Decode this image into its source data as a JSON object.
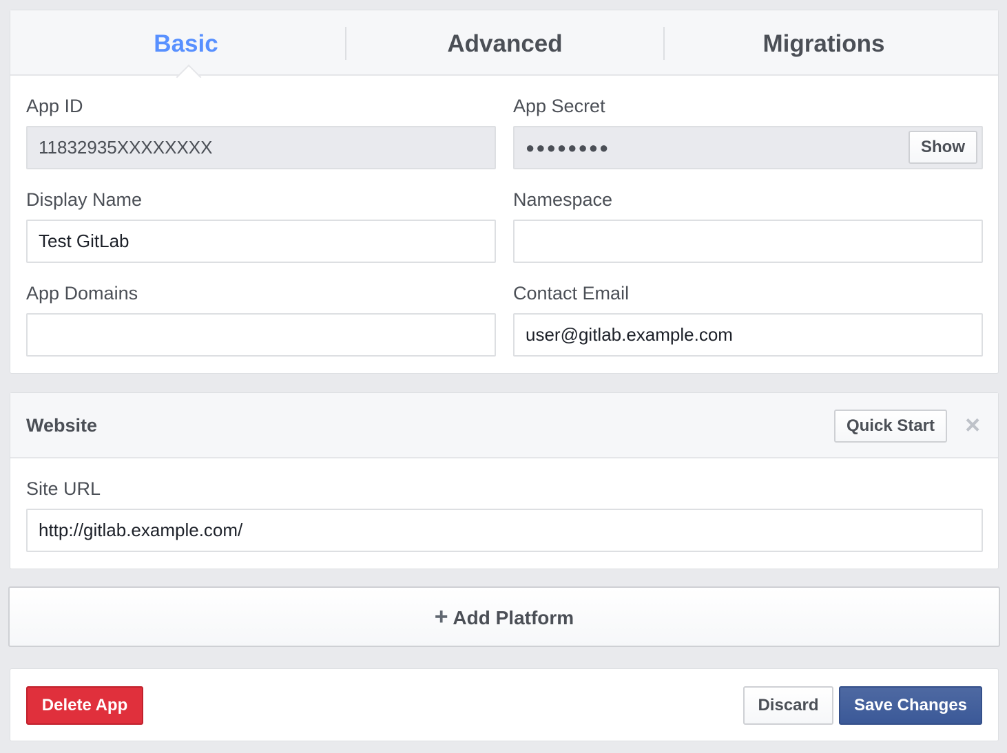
{
  "tabs": [
    {
      "label": "Basic",
      "active": true
    },
    {
      "label": "Advanced"
    },
    {
      "label": "Migrations"
    }
  ],
  "basic": {
    "app_id": {
      "label": "App ID",
      "value": "11832935XXXXXXXX"
    },
    "app_secret": {
      "label": "App Secret",
      "value": "●●●●●●●●",
      "show_label": "Show"
    },
    "display_name": {
      "label": "Display Name",
      "value": "Test GitLab"
    },
    "namespace": {
      "label": "Namespace",
      "value": ""
    },
    "app_domains": {
      "label": "App Domains",
      "value": ""
    },
    "contact_email": {
      "label": "Contact Email",
      "value": "user@gitlab.example.com"
    }
  },
  "website": {
    "title": "Website",
    "quick_start_label": "Quick Start",
    "close_icon": "×",
    "site_url": {
      "label": "Site URL",
      "value": "http://gitlab.example.com/"
    }
  },
  "add_platform": {
    "icon": "+",
    "label": "Add Platform"
  },
  "footer": {
    "delete_label": "Delete App",
    "discard_label": "Discard",
    "save_label": "Save Changes"
  },
  "colors": {
    "accent": "#5890ff",
    "danger": "#e0303c",
    "primary": "#4267b2"
  }
}
